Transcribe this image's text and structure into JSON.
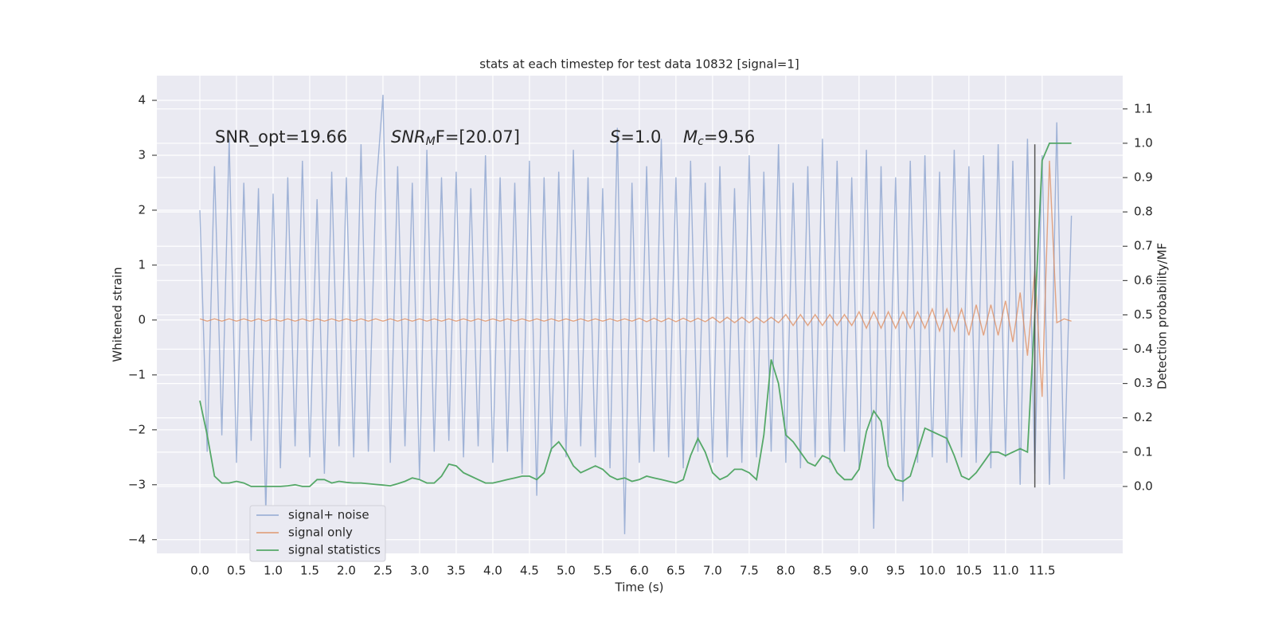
{
  "chart_data": {
    "type": "line",
    "title": "stats at each timestep for test data 10832 [signal=1]",
    "xlabel": "Time (s)",
    "ylabel": "Whitened strain",
    "y2label": "Detection probability/MF",
    "annotations": [
      {
        "text": "SNR_opt=19.66"
      },
      {
        "italic": "SNR",
        "sub": "M",
        "after": "F=[20.07]"
      },
      {
        "italic": "S",
        "after": "=1.0"
      },
      {
        "italic": "M",
        "sub": "c",
        "after": "=9.56"
      }
    ],
    "xlim": [
      -0.587,
      12.6
    ],
    "ylim": [
      -4.25,
      4.45
    ],
    "y2lim": [
      -0.195,
      1.197
    ],
    "xticks": [
      {
        "value": 0,
        "label": "0.0"
      },
      {
        "value": 0.5,
        "label": "0.5"
      },
      {
        "value": 1,
        "label": "1.0"
      },
      {
        "value": 1.5,
        "label": "1.5"
      },
      {
        "value": 2,
        "label": "2.0"
      },
      {
        "value": 2.5,
        "label": "2.5"
      },
      {
        "value": 3,
        "label": "3.0"
      },
      {
        "value": 3.5,
        "label": "3.5"
      },
      {
        "value": 4,
        "label": "4.0"
      },
      {
        "value": 4.5,
        "label": "4.5"
      },
      {
        "value": 5,
        "label": "5.0"
      },
      {
        "value": 5.5,
        "label": "5.5"
      },
      {
        "value": 6,
        "label": "6.0"
      },
      {
        "value": 6.5,
        "label": "6.5"
      },
      {
        "value": 7,
        "label": "7.0"
      },
      {
        "value": 7.5,
        "label": "7.5"
      },
      {
        "value": 8,
        "label": "8.0"
      },
      {
        "value": 8.5,
        "label": "8.5"
      },
      {
        "value": 9,
        "label": "9.0"
      },
      {
        "value": 9.5,
        "label": "9.5"
      },
      {
        "value": 10,
        "label": "10.0"
      },
      {
        "value": 10.5,
        "label": "10.5"
      },
      {
        "value": 11,
        "label": "11.0"
      },
      {
        "value": 11.5,
        "label": "11.5"
      }
    ],
    "yticks": [
      {
        "value": -4,
        "label": "−4"
      },
      {
        "value": -3,
        "label": "−3"
      },
      {
        "value": -2,
        "label": "−2"
      },
      {
        "value": -1,
        "label": "−1"
      },
      0,
      1,
      2,
      3,
      4
    ],
    "y2ticks": [
      {
        "value": 0,
        "label": "0.0"
      },
      {
        "value": 0.1,
        "label": "0.1"
      },
      {
        "value": 0.2,
        "label": "0.2"
      },
      {
        "value": 0.3,
        "label": "0.3"
      },
      {
        "value": 0.4,
        "label": "0.4"
      },
      {
        "value": 0.5,
        "label": "0.5"
      },
      {
        "value": 0.6,
        "label": "0.6"
      },
      {
        "value": 0.7,
        "label": "0.7"
      },
      {
        "value": 0.8,
        "label": "0.8"
      },
      {
        "value": 0.9,
        "label": "0.9"
      },
      {
        "value": 1,
        "label": "1.0"
      },
      {
        "value": 1.1,
        "label": "1.1"
      }
    ],
    "grid": true,
    "legend": "lower left",
    "vline": {
      "x": 11.4,
      "ymin": -3.05,
      "ymax": 3.2,
      "color": "#555555"
    },
    "x": [
      0,
      0.1,
      0.2,
      0.3,
      0.4,
      0.5,
      0.6,
      0.7,
      0.8,
      0.9,
      1,
      1.1,
      1.2,
      1.3,
      1.4,
      1.5,
      1.6,
      1.7,
      1.8,
      1.9,
      2,
      2.1,
      2.2,
      2.3,
      2.4,
      2.5,
      2.6,
      2.7,
      2.8,
      2.9,
      3,
      3.1,
      3.2,
      3.3,
      3.4,
      3.5,
      3.6,
      3.7,
      3.8,
      3.9,
      4,
      4.1,
      4.2,
      4.3,
      4.4,
      4.5,
      4.6,
      4.7,
      4.8,
      4.9,
      5,
      5.1,
      5.2,
      5.3,
      5.4,
      5.5,
      5.6,
      5.7,
      5.8,
      5.9,
      6,
      6.1,
      6.2,
      6.3,
      6.4,
      6.5,
      6.6,
      6.7,
      6.8,
      6.9,
      7,
      7.1,
      7.2,
      7.3,
      7.4,
      7.5,
      7.6,
      7.7,
      7.8,
      7.9,
      8,
      8.1,
      8.2,
      8.3,
      8.4,
      8.5,
      8.6,
      8.7,
      8.8,
      8.9,
      9,
      9.1,
      9.2,
      9.3,
      9.4,
      9.5,
      9.6,
      9.7,
      9.8,
      9.9,
      10,
      10.1,
      10.2,
      10.3,
      10.4,
      10.5,
      10.6,
      10.7,
      10.8,
      10.9,
      11,
      11.1,
      11.2,
      11.3,
      11.4,
      11.5,
      11.6,
      11.7,
      11.8,
      11.9
    ],
    "series": [
      {
        "name": "signal+ noise",
        "color": "#7f9acb",
        "values": [
          2.0,
          -2.4,
          2.8,
          -2.1,
          3.3,
          -2.6,
          2.5,
          -2.2,
          2.4,
          -3.5,
          2.3,
          -2.7,
          2.6,
          -2.3,
          2.9,
          -2.5,
          2.2,
          -2.8,
          2.7,
          -2.3,
          2.6,
          -2.5,
          3.2,
          -2.4,
          2.3,
          4.1,
          -2.6,
          2.8,
          -2.3,
          2.5,
          -2.9,
          3.1,
          -2.4,
          2.6,
          -2.2,
          2.7,
          -2.5,
          2.4,
          -2.3,
          3.0,
          -2.6,
          2.6,
          -2.4,
          2.5,
          -2.8,
          2.9,
          -3.2,
          2.6,
          -2.4,
          2.7,
          -2.5,
          3.1,
          -2.3,
          2.6,
          -2.5,
          2.4,
          -2.7,
          3.5,
          -3.9,
          2.5,
          -2.6,
          2.8,
          -2.4,
          3.3,
          -2.5,
          2.6,
          -2.7,
          2.9,
          -2.4,
          2.5,
          -2.6,
          2.8,
          -2.5,
          2.4,
          -2.6,
          3.0,
          -2.5,
          2.7,
          -2.4,
          3.2,
          -2.6,
          2.5,
          -2.7,
          2.8,
          -2.5,
          3.3,
          -2.6,
          2.9,
          -2.4,
          2.6,
          -2.7,
          3.1,
          -3.8,
          2.8,
          -2.5,
          2.6,
          -3.3,
          2.9,
          -2.6,
          3.0,
          -2.5,
          2.7,
          -2.6,
          3.1,
          -2.5,
          2.8,
          -2.6,
          3.0,
          -2.7,
          3.2,
          -2.5,
          2.9,
          -3.0,
          3.3,
          -2.8,
          3.0,
          -3.0,
          3.6,
          -2.9,
          1.9
        ]
      },
      {
        "name": "signal only",
        "color": "#dd8452",
        "values": [
          0.02,
          -0.02,
          0.02,
          -0.02,
          0.02,
          -0.02,
          0.02,
          -0.02,
          0.02,
          -0.02,
          0.02,
          -0.02,
          0.02,
          -0.02,
          0.02,
          -0.02,
          0.02,
          -0.02,
          0.02,
          -0.02,
          0.02,
          -0.02,
          0.02,
          -0.02,
          0.02,
          -0.02,
          0.02,
          -0.02,
          0.02,
          -0.02,
          0.02,
          -0.02,
          0.02,
          -0.02,
          0.02,
          -0.02,
          0.02,
          -0.02,
          0.02,
          -0.02,
          0.02,
          -0.02,
          0.02,
          -0.02,
          0.02,
          -0.02,
          0.02,
          -0.02,
          0.02,
          -0.02,
          0.02,
          -0.02,
          0.02,
          -0.02,
          0.02,
          -0.02,
          0.02,
          -0.02,
          0.02,
          -0.02,
          0.03,
          -0.03,
          0.03,
          -0.03,
          0.03,
          -0.03,
          0.03,
          -0.03,
          0.03,
          -0.03,
          0.05,
          -0.05,
          0.05,
          -0.05,
          0.05,
          -0.05,
          0.05,
          -0.05,
          0.05,
          -0.05,
          0.1,
          -0.1,
          0.1,
          -0.1,
          0.1,
          -0.1,
          0.1,
          -0.1,
          0.1,
          -0.1,
          0.15,
          -0.15,
          0.15,
          -0.15,
          0.15,
          -0.15,
          0.15,
          -0.15,
          0.15,
          -0.15,
          0.2,
          -0.2,
          0.2,
          -0.2,
          0.2,
          -0.28,
          0.28,
          -0.28,
          0.28,
          -0.28,
          0.35,
          -0.4,
          0.5,
          -0.65,
          0.9,
          -1.4,
          2.9,
          -0.05,
          0.02,
          -0.02
        ]
      },
      {
        "name": "signal statistics",
        "color": "#55a868",
        "axis": "y2",
        "values": [
          0.25,
          0.15,
          0.03,
          0.01,
          0.01,
          0.015,
          0.01,
          0.0,
          0.0,
          0.0,
          0.0,
          0.0,
          0.002,
          0.005,
          0.0,
          0.0,
          0.02,
          0.02,
          0.01,
          0.015,
          0.012,
          0.01,
          0.01,
          0.008,
          0.006,
          0.004,
          0.002,
          0.008,
          0.015,
          0.025,
          0.02,
          0.01,
          0.01,
          0.03,
          0.065,
          0.06,
          0.04,
          0.03,
          0.02,
          0.01,
          0.01,
          0.015,
          0.02,
          0.025,
          0.03,
          0.03,
          0.02,
          0.04,
          0.11,
          0.13,
          0.1,
          0.06,
          0.04,
          0.05,
          0.06,
          0.05,
          0.03,
          0.02,
          0.025,
          0.015,
          0.02,
          0.03,
          0.025,
          0.02,
          0.015,
          0.01,
          0.02,
          0.09,
          0.14,
          0.1,
          0.04,
          0.02,
          0.03,
          0.05,
          0.05,
          0.04,
          0.02,
          0.15,
          0.37,
          0.3,
          0.15,
          0.13,
          0.1,
          0.07,
          0.06,
          0.09,
          0.08,
          0.04,
          0.02,
          0.02,
          0.05,
          0.16,
          0.22,
          0.19,
          0.06,
          0.02,
          0.015,
          0.03,
          0.1,
          0.17,
          0.16,
          0.15,
          0.14,
          0.09,
          0.03,
          0.02,
          0.04,
          0.07,
          0.1,
          0.1,
          0.09,
          0.1,
          0.11,
          0.1,
          0.5,
          0.95,
          1.0,
          1.0,
          1.0,
          1.0
        ]
      }
    ]
  }
}
